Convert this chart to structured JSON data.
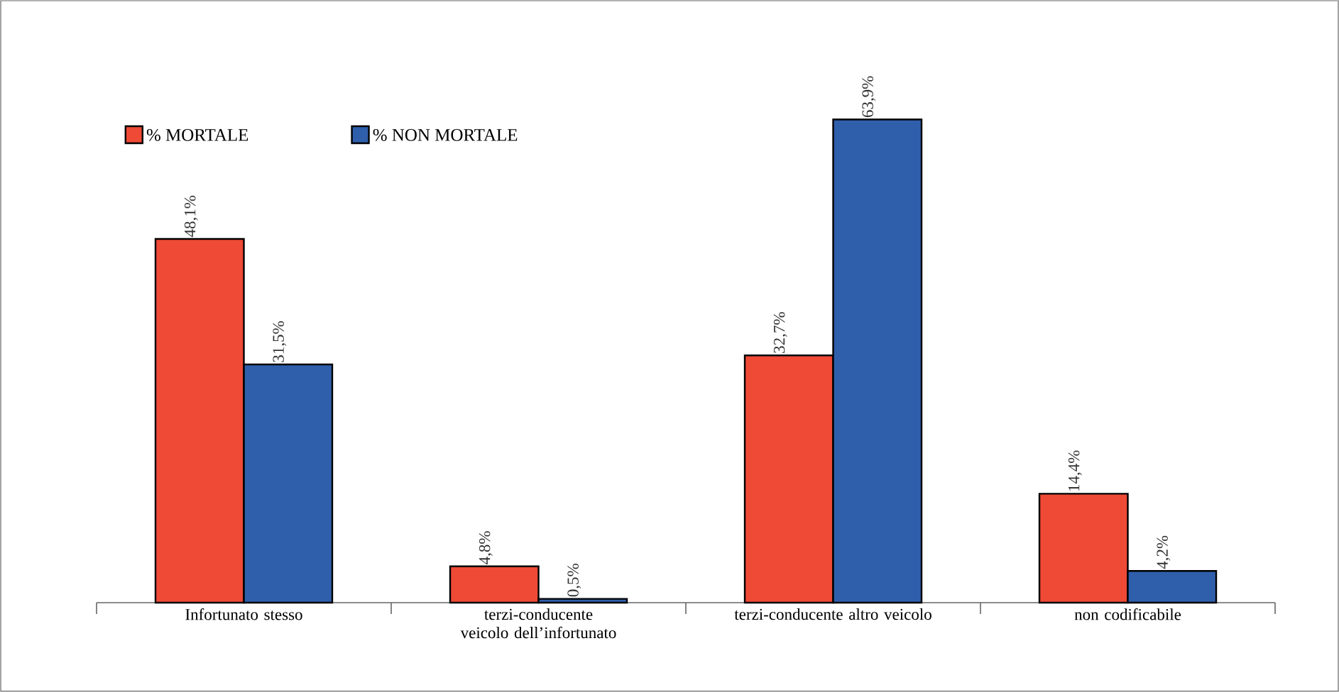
{
  "chart_data": {
    "type": "bar",
    "categories": [
      "Infortunato stesso",
      "terzi-conducente veicolo dell’infortunato",
      "terzi-conducente altro veicolo",
      "non codificabile"
    ],
    "series": [
      {
        "name": "% MORTALE",
        "color": "#ee4a35",
        "values": [
          48.1,
          4.8,
          32.7,
          14.4
        ],
        "value_labels": [
          "48,1%",
          "4,8%",
          "32,7%",
          "14,4%"
        ]
      },
      {
        "name": "% NON MORTALE",
        "color": "#2f5fab",
        "values": [
          31.5,
          0.5,
          63.9,
          4.2
        ],
        "value_labels": [
          "31,5%",
          "0,5%",
          "63,9%",
          "4,2%"
        ]
      }
    ],
    "legend": "top left",
    "grid": false
  }
}
